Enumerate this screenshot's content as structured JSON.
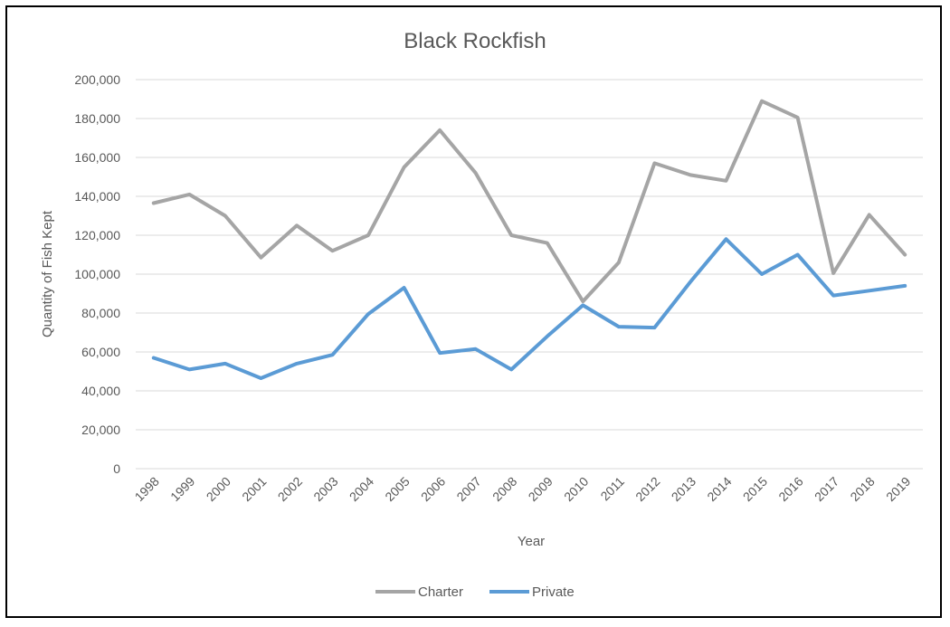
{
  "chart_data": {
    "type": "line",
    "title": "Black Rockfish",
    "xlabel": "Year",
    "ylabel": "Quantity of Fish Kept",
    "categories": [
      "1998",
      "1999",
      "2000",
      "2001",
      "2002",
      "2003",
      "2004",
      "2005",
      "2006",
      "2007",
      "2008",
      "2009",
      "2010",
      "2011",
      "2012",
      "2013",
      "2014",
      "2015",
      "2016",
      "2017",
      "2018",
      "2019"
    ],
    "ylim": [
      0,
      200000
    ],
    "yticks": [
      "0",
      "20,000",
      "40,000",
      "60,000",
      "80,000",
      "100,000",
      "120,000",
      "140,000",
      "160,000",
      "180,000",
      "200,000"
    ],
    "grid": true,
    "legend_position": "bottom",
    "series": [
      {
        "name": "Charter",
        "color": "#a5a5a5",
        "values": [
          136500,
          141000,
          130000,
          108500,
          125000,
          112000,
          120000,
          155000,
          174000,
          152000,
          120000,
          116000,
          86000,
          106000,
          157000,
          151000,
          148000,
          189000,
          180500,
          100500,
          130500,
          110000
        ]
      },
      {
        "name": "Private",
        "color": "#5b9bd5",
        "values": [
          57000,
          51000,
          54000,
          46500,
          54000,
          58500,
          79500,
          93000,
          59500,
          61500,
          51000,
          68000,
          84000,
          73000,
          72500,
          96000,
          118000,
          100000,
          110000,
          89000,
          91500,
          94000
        ]
      }
    ]
  }
}
